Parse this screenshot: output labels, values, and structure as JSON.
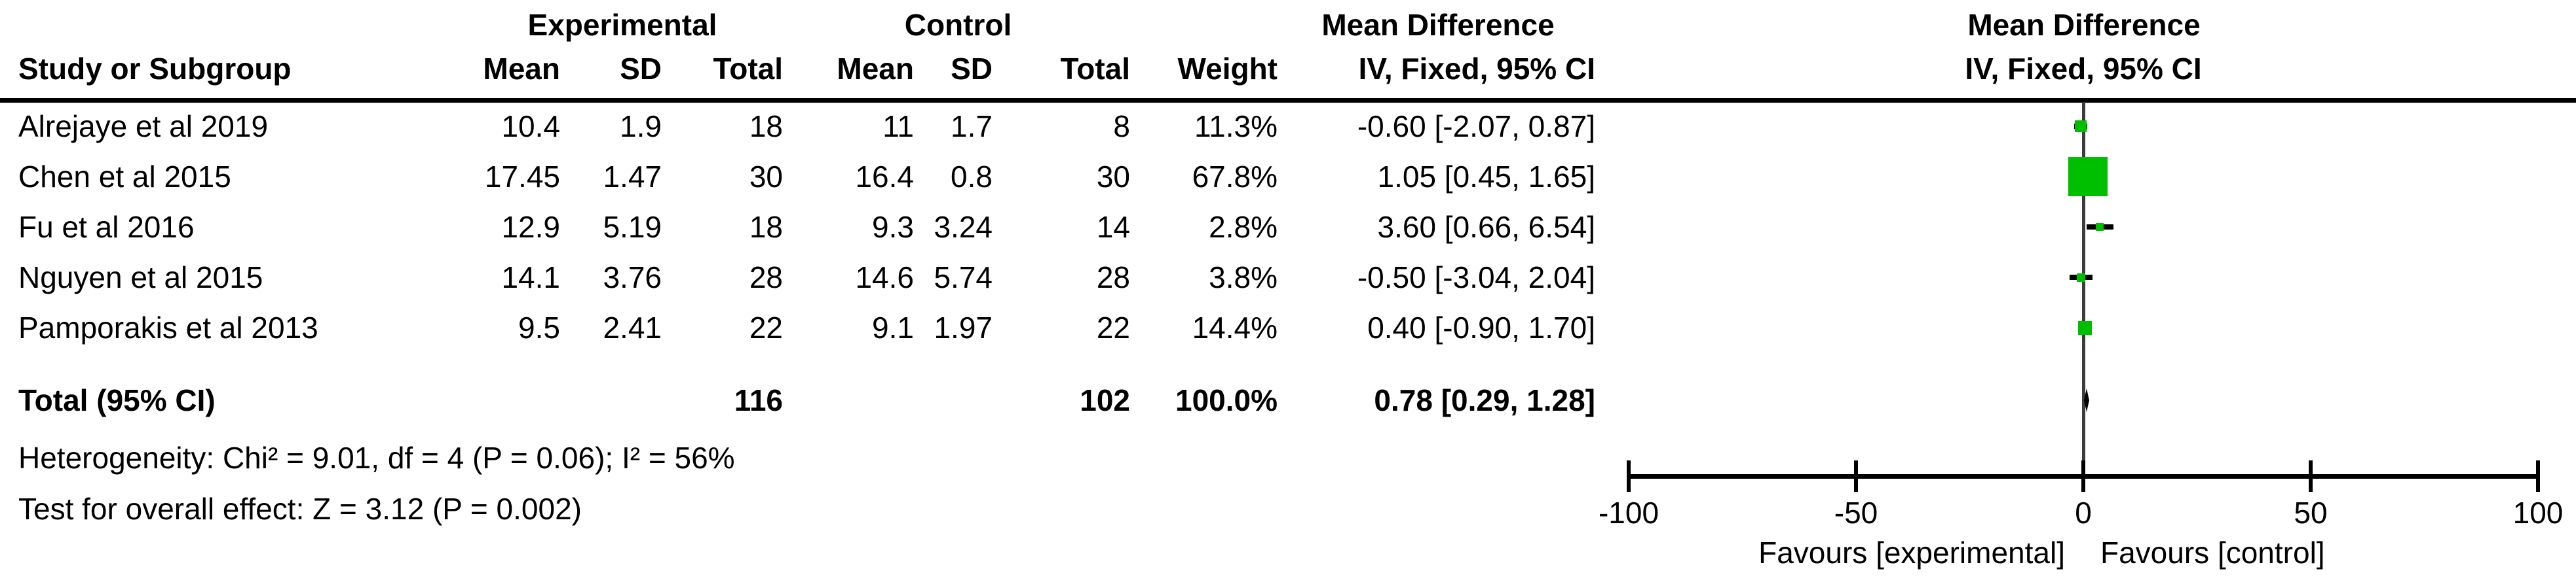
{
  "header": {
    "group": {
      "experimental": "Experimental",
      "control": "Control",
      "md_table": "Mean Difference",
      "md_plot": "Mean Difference"
    },
    "columns": {
      "study": "Study or Subgroup",
      "mean_e": "Mean",
      "sd_e": "SD",
      "total_e": "Total",
      "mean_c": "Mean",
      "sd_c": "SD",
      "total_c": "Total",
      "weight": "Weight",
      "ci": "IV, Fixed, 95% CI",
      "ci_plot": "IV, Fixed, 95% CI"
    }
  },
  "total_row": {
    "label": "Total (95% CI)",
    "total_e": "116",
    "total_c": "102",
    "weight": "100.0%",
    "ci": "0.78 [0.29, 1.28]"
  },
  "footer": {
    "heterogeneity": "Heterogeneity: Chi² = 9.01, df = 4 (P = 0.06); I² = 56%",
    "overall": "Test for overall effect: Z = 3.12 (P = 0.002)"
  },
  "axis": {
    "tick_labels": [
      "-100",
      "-50",
      "0",
      "50",
      "100"
    ],
    "tick_values": [
      -100,
      -50,
      0,
      50,
      100
    ],
    "range": [
      -100,
      100
    ],
    "favours_left": "Favours [experimental]",
    "favours_right": "Favours [control]"
  },
  "colors": {
    "marker_green": "#00BF00",
    "diamond_black": "#000000",
    "axis_black": "#000000",
    "zero_line_gray": "#3C3C3C"
  },
  "chart_data": {
    "type": "forest",
    "effect_measure": "Mean Difference",
    "model": "IV, Fixed, 95% CI",
    "studies": [
      {
        "name": "Alrejaye et al 2019",
        "mean_e": "10.4",
        "sd_e": "1.9",
        "total_e": "18",
        "mean_c": "11",
        "sd_c": "1.7",
        "total_c": "8",
        "weight": "11.3%",
        "weight_value": 11.3,
        "md": -0.6,
        "ci_low": -2.07,
        "ci_high": 0.87,
        "ci_text": "-0.60 [-2.07, 0.87]"
      },
      {
        "name": "Chen et al 2015",
        "mean_e": "17.45",
        "sd_e": "1.47",
        "total_e": "30",
        "mean_c": "16.4",
        "sd_c": "0.8",
        "total_c": "30",
        "weight": "67.8%",
        "weight_value": 67.8,
        "md": 1.05,
        "ci_low": 0.45,
        "ci_high": 1.65,
        "ci_text": "1.05 [0.45, 1.65]"
      },
      {
        "name": "Fu et al 2016",
        "mean_e": "12.9",
        "sd_e": "5.19",
        "total_e": "18",
        "mean_c": "9.3",
        "sd_c": "3.24",
        "total_c": "14",
        "weight": "2.8%",
        "weight_value": 2.8,
        "md": 3.6,
        "ci_low": 0.66,
        "ci_high": 6.54,
        "ci_text": "3.60 [0.66, 6.54]"
      },
      {
        "name": "Nguyen et al 2015",
        "mean_e": "14.1",
        "sd_e": "3.76",
        "total_e": "28",
        "mean_c": "14.6",
        "sd_c": "5.74",
        "total_c": "28",
        "weight": "3.8%",
        "weight_value": 3.8,
        "md": -0.5,
        "ci_low": -3.04,
        "ci_high": 2.04,
        "ci_text": "-0.50 [-3.04, 2.04]"
      },
      {
        "name": "Pamporakis et al 2013",
        "mean_e": "9.5",
        "sd_e": "2.41",
        "total_e": "22",
        "mean_c": "9.1",
        "sd_c": "1.97",
        "total_c": "22",
        "weight": "14.4%",
        "weight_value": 14.4,
        "md": 0.4,
        "ci_low": -0.9,
        "ci_high": 1.7,
        "ci_text": "0.40 [-0.90, 1.70]"
      }
    ],
    "total": {
      "label": "Total (95% CI)",
      "total_e": 116,
      "total_c": 102,
      "weight_value": 100.0,
      "md": 0.78,
      "ci_low": 0.29,
      "ci_high": 1.28
    },
    "heterogeneity": {
      "chi2": 9.01,
      "df": 4,
      "p": 0.06,
      "i2_percent": 56
    },
    "overall_effect": {
      "z": 3.12,
      "p": 0.002
    },
    "xlim": [
      -100,
      100
    ],
    "x_ticks": [
      -100,
      -50,
      0,
      50,
      100
    ]
  }
}
